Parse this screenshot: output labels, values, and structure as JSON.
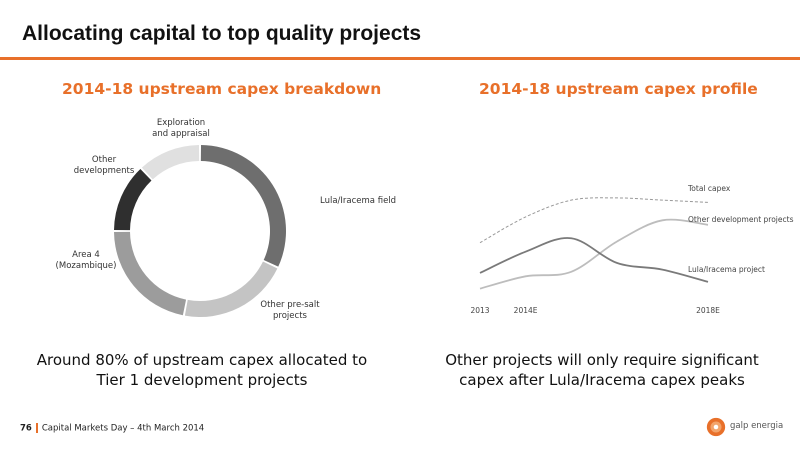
{
  "slide": {
    "title": "Allocating capital to top quality projects"
  },
  "left": {
    "title": "2014-18 upstream capex breakdown",
    "caption": "Around 80% of upstream capex allocated to\nTier 1 development projects"
  },
  "right": {
    "title": "2014-18 upstream capex profile",
    "caption": "Other projects will only require significant\ncapex after Lula/Iracema capex peaks"
  },
  "footer": {
    "page_number": "76",
    "event": "Capital Markets Day – 4th March 2014"
  },
  "logo": {
    "text": "galp energia",
    "colors": {
      "primary": "#e8702a",
      "secondary": "#f3a46b"
    }
  },
  "colors": {
    "accent": "#e8702a"
  },
  "chart_data": [
    {
      "type": "pie",
      "variant": "donut",
      "title": "2014-18 upstream capex breakdown",
      "categories": [
        "Lula/Iracema field",
        "Other pre-salt\nprojects",
        "Area 4\n(Mozambique)",
        "Other\ndevelopments",
        "Exploration\nand appraisal"
      ],
      "values": [
        32,
        21,
        22,
        13,
        12
      ],
      "colors": [
        "#6e6e6e",
        "#c4c4c4",
        "#9c9c9c",
        "#2f2f2f",
        "#e0e0e0"
      ]
    },
    {
      "type": "line",
      "title": "2014-18 upstream capex profile",
      "x": [
        2013,
        2014,
        2015,
        2016,
        2017,
        2018
      ],
      "x_ticks": [
        {
          "value": 2013,
          "label": "2013"
        },
        {
          "value": 2014,
          "label": "2014E"
        },
        {
          "value": 2018,
          "label": "2018E"
        }
      ],
      "y_axis_shown": false,
      "ylim": [
        0,
        100
      ],
      "series": [
        {
          "name": "Total capex",
          "style": "dashed",
          "color": "#999999",
          "values": [
            44,
            67,
            82,
            84,
            82,
            80
          ]
        },
        {
          "name": "Other development projects",
          "style": "solid",
          "color": "#bdbdbd",
          "values": [
            3,
            14,
            18,
            45,
            64,
            60
          ]
        },
        {
          "name": "Lula/Iracema project",
          "style": "solid",
          "color": "#7a7a7a",
          "values": [
            17,
            36,
            48,
            26,
            20,
            9
          ]
        }
      ]
    }
  ]
}
